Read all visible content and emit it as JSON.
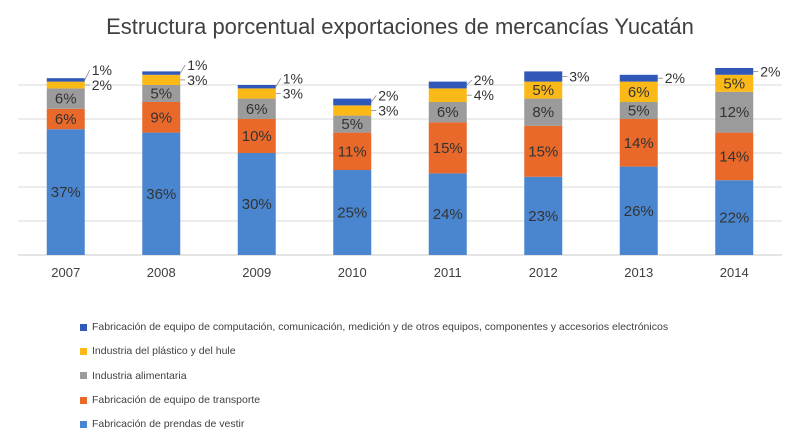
{
  "chart_data": {
    "type": "bar",
    "stacked": true,
    "title": "Estructura porcentual exportaciones de mercancías Yucatán",
    "categories": [
      "2007",
      "2008",
      "2009",
      "2010",
      "2011",
      "2012",
      "2013",
      "2014"
    ],
    "ylim": [
      0,
      60
    ],
    "grid": true,
    "legend": "bottom-left",
    "series": [
      {
        "name": "Fabricación de prendas de vestir",
        "color": "#4a86cf",
        "values": [
          37,
          36,
          30,
          25,
          24,
          23,
          26,
          22
        ]
      },
      {
        "name": "Fabricación de equipo de transporte",
        "color": "#e8692a",
        "values": [
          6,
          9,
          10,
          11,
          15,
          15,
          14,
          14
        ]
      },
      {
        "name": "Industria  alimentaria",
        "color": "#9b9b9b",
        "values": [
          6,
          5,
          6,
          5,
          6,
          8,
          5,
          12
        ]
      },
      {
        "name": "Industria  del plástico y del hule",
        "color": "#fbb917",
        "values": [
          2,
          3,
          3,
          3,
          4,
          5,
          6,
          5
        ]
      },
      {
        "name": "Fabricación de equipo de computación,  comunicación,  medición  y de  otros equipos, componentes y accesorios electrónicos",
        "color": "#3058b8",
        "values": [
          1,
          1,
          1,
          2,
          2,
          3,
          2,
          2
        ]
      }
    ]
  }
}
